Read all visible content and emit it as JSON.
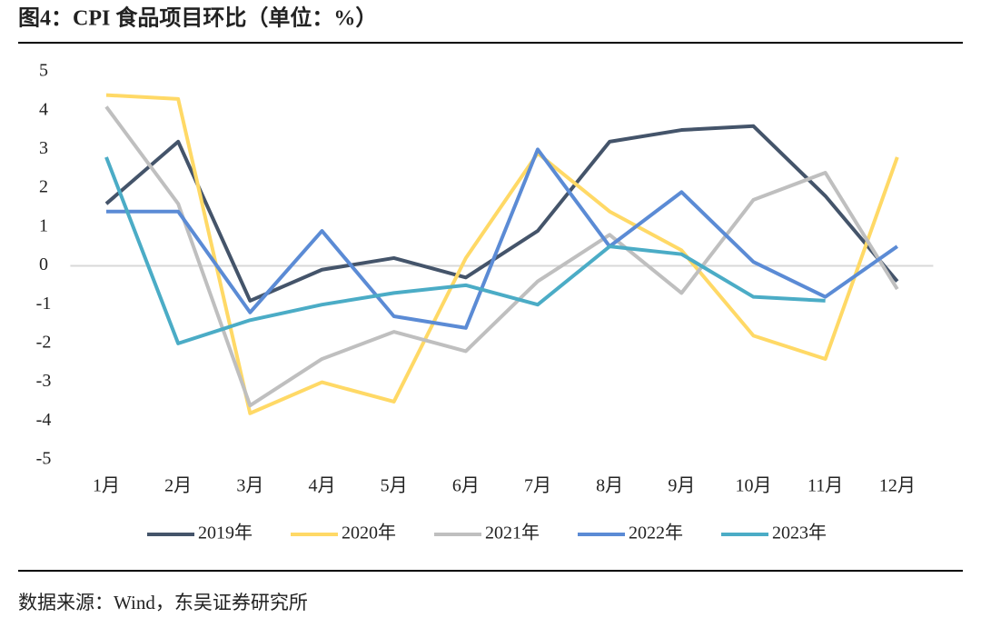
{
  "chart_data": {
    "type": "line",
    "title": "图4：CPI 食品项目环比（单位：%）",
    "source": "数据来源：Wind，东吴证券研究所",
    "categories": [
      "1月",
      "2月",
      "3月",
      "4月",
      "5月",
      "6月",
      "7月",
      "8月",
      "9月",
      "10月",
      "11月",
      "12月"
    ],
    "series": [
      {
        "name": "2019年",
        "color": "#44546a",
        "values": [
          1.6,
          3.2,
          -0.9,
          -0.1,
          0.2,
          -0.3,
          0.9,
          3.2,
          3.5,
          3.6,
          1.8,
          -0.4
        ]
      },
      {
        "name": "2020年",
        "color": "#ffd966",
        "values": [
          4.4,
          4.3,
          -3.8,
          -3.0,
          -3.5,
          0.2,
          2.9,
          1.4,
          0.4,
          -1.8,
          -2.4,
          2.8
        ]
      },
      {
        "name": "2021年",
        "color": "#bfbfbf",
        "values": [
          4.1,
          1.6,
          -3.6,
          -2.4,
          -1.7,
          -2.2,
          -0.4,
          0.8,
          -0.7,
          1.7,
          2.4,
          -0.6
        ]
      },
      {
        "name": "2022年",
        "color": "#5b8bd5",
        "values": [
          1.4,
          1.4,
          -1.2,
          0.9,
          -1.3,
          -1.6,
          3.0,
          0.5,
          1.9,
          0.1,
          -0.8,
          0.5
        ]
      },
      {
        "name": "2023年",
        "color": "#4bacc6",
        "values": [
          2.8,
          -2.0,
          -1.4,
          -1.0,
          -0.7,
          -0.5,
          -1.0,
          0.5,
          0.3,
          -0.8,
          -0.9,
          null
        ]
      }
    ],
    "ylim": [
      -5,
      5
    ],
    "yticks": [
      -5,
      -4,
      -3,
      -2,
      -1,
      0,
      1,
      2,
      3,
      4,
      5
    ],
    "legend": "bottom"
  }
}
